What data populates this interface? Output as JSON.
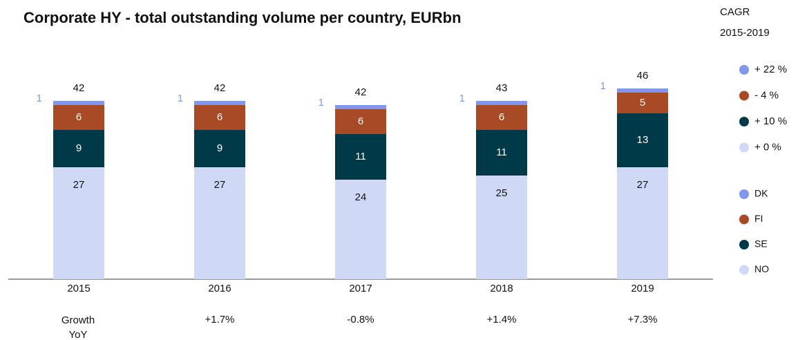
{
  "chart_data": {
    "type": "stacked_bar",
    "title": "Corporate HY - total outstanding volume per country, EURbn",
    "categories": [
      "2015",
      "2016",
      "2017",
      "2018",
      "2019"
    ],
    "series": [
      {
        "name": "NO",
        "color": "#cfd8f5",
        "values": [
          27,
          27,
          24,
          25,
          27
        ],
        "cagr": 0,
        "cagr_label": "+ 0 %"
      },
      {
        "name": "SE",
        "color": "#003a48",
        "values": [
          9,
          9,
          11,
          11,
          13
        ],
        "cagr": 10,
        "cagr_label": "+ 10 %"
      },
      {
        "name": "FI",
        "color": "#a94a26",
        "values": [
          6,
          6,
          6,
          6,
          5
        ],
        "cagr": -4,
        "cagr_label": "- 4 %"
      },
      {
        "name": "DK",
        "color": "#8197ec",
        "values": [
          1,
          1,
          1,
          1,
          1
        ],
        "cagr": 22,
        "cagr_label": "+ 22 %"
      }
    ],
    "totals": [
      42,
      42,
      42,
      43,
      46
    ],
    "cagr_title": "CAGR",
    "cagr_period": "2015-2019",
    "growth_title": "Growth YoY",
    "growth": [
      null,
      "+1.7%",
      "-0.8%",
      "+1.4%",
      "+7.3%"
    ]
  }
}
